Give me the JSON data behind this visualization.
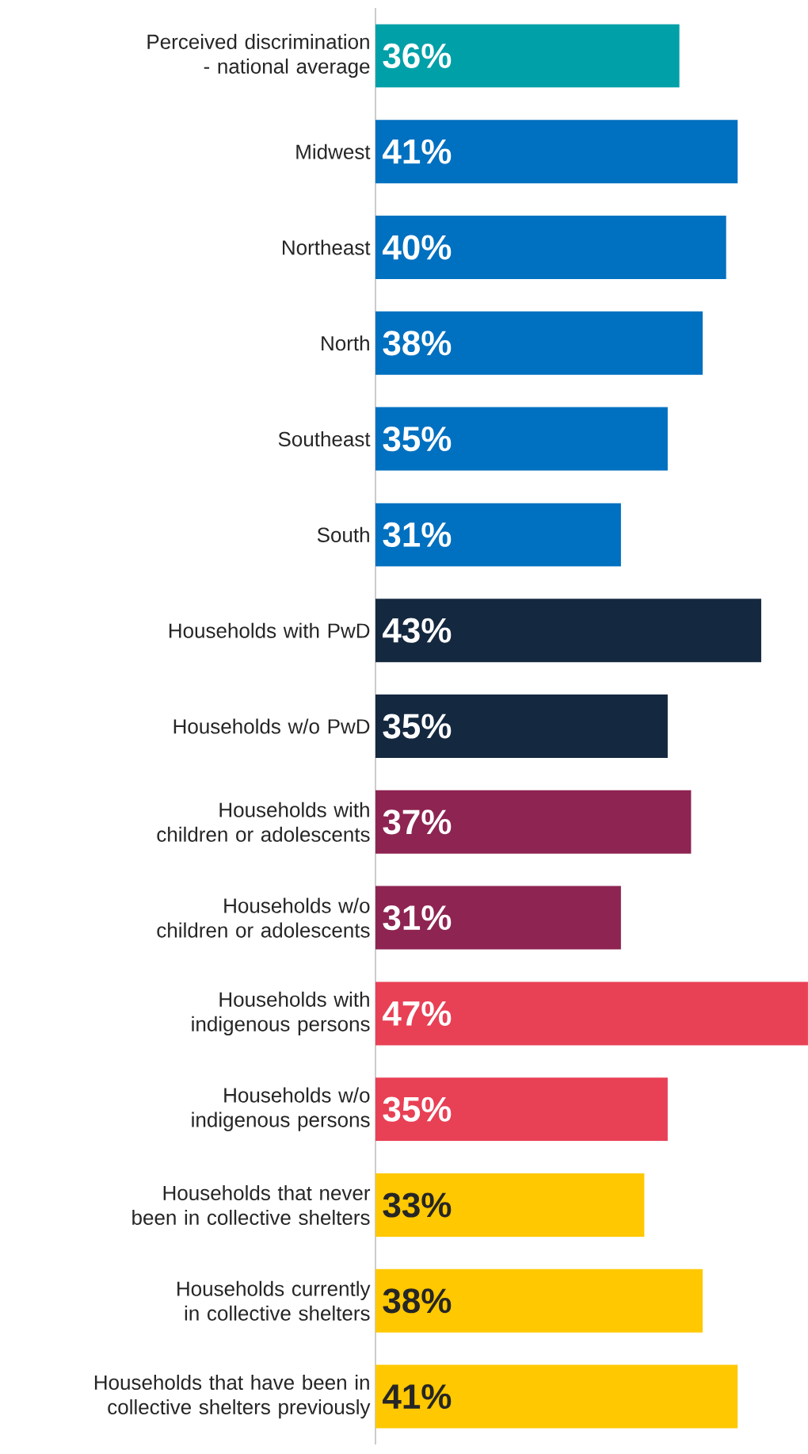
{
  "chart_data": {
    "type": "bar",
    "orientation": "horizontal",
    "categories": [
      "Perceived discrimination - national average",
      "Midwest",
      "Northeast",
      "North",
      "Southeast",
      "South",
      "Households with PwD",
      "Households w/o PwD",
      "Households with children or adolescents",
      "Households w/o children or adolescents",
      "Households with indigenous persons",
      "Households w/o indigenous persons",
      "Households that never been in collective shelters",
      "Households currently in collective shelters",
      "Households that have been in collective shelters previously"
    ],
    "values": [
      36,
      41,
      40,
      38,
      35,
      31,
      43,
      35,
      37,
      31,
      47,
      35,
      33,
      38,
      41
    ],
    "value_labels": [
      "36%",
      "41%",
      "40%",
      "38%",
      "35%",
      "31%",
      "43%",
      "35%",
      "37%",
      "31%",
      "47%",
      "35%",
      "33%",
      "38%",
      "41%"
    ],
    "colors": [
      "#00a0a8",
      "#0070c0",
      "#0070c0",
      "#0070c0",
      "#0070c0",
      "#0070c0",
      "#14283f",
      "#14283f",
      "#8e2452",
      "#8e2452",
      "#e84055",
      "#e84055",
      "#ffc800",
      "#ffc800",
      "#ffc800"
    ],
    "xlim": [
      10,
      47
    ]
  }
}
